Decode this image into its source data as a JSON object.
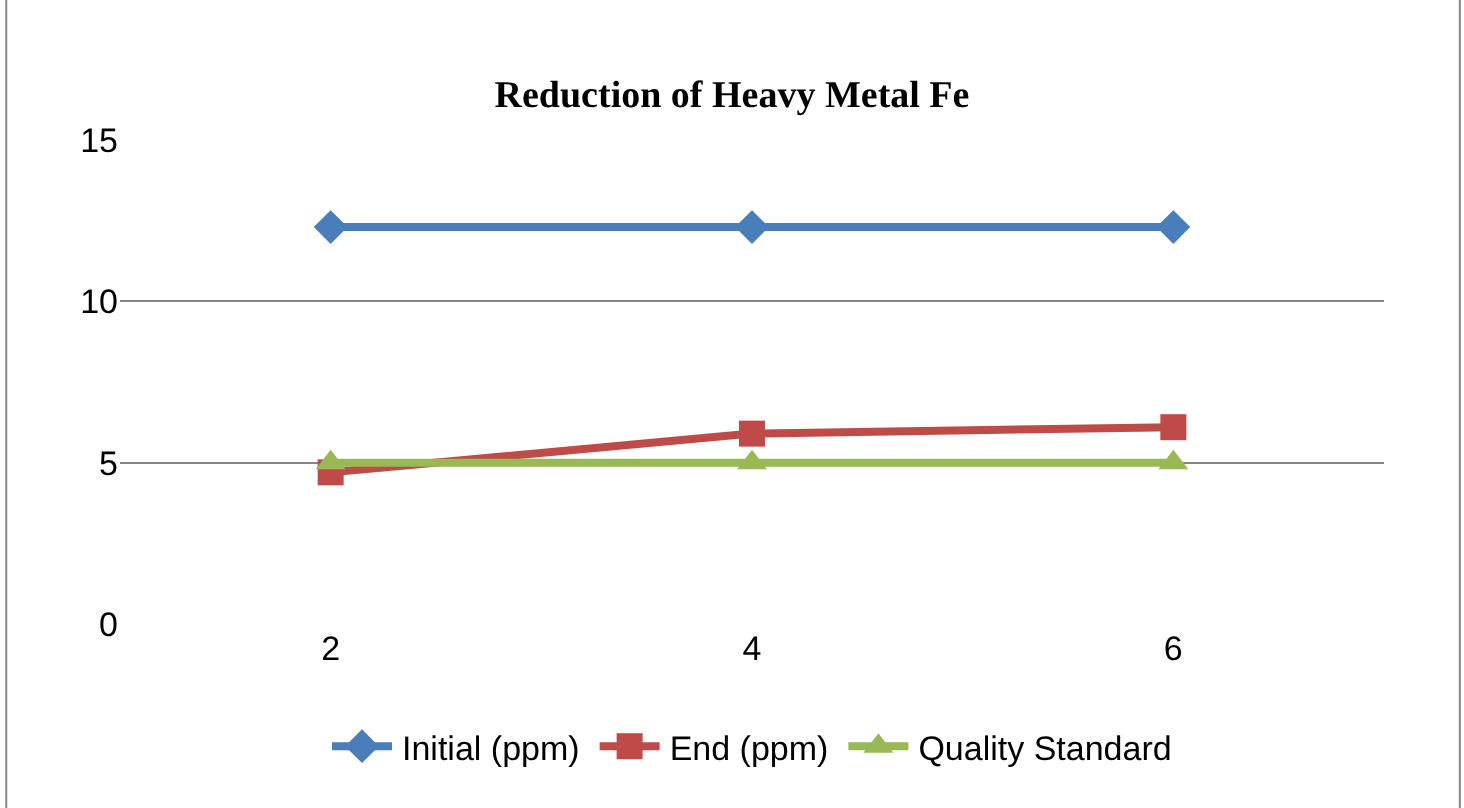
{
  "chart_data": {
    "type": "line",
    "title": "Reduction of Heavy Metal Fe",
    "categories": [
      "2",
      "4",
      "6"
    ],
    "series": [
      {
        "name": "Initial (ppm)",
        "color": "#4a7ebb",
        "marker": "diamond",
        "values": [
          12.3,
          12.3,
          12.3
        ]
      },
      {
        "name": "End (ppm)",
        "color": "#be4b48",
        "marker": "square",
        "values": [
          4.7,
          5.9,
          6.1
        ]
      },
      {
        "name": "Quality Standard",
        "color": "#98b954",
        "marker": "triangle",
        "values": [
          5,
          5,
          5
        ]
      }
    ],
    "ylim": [
      0,
      15
    ],
    "yticks": [
      0,
      5,
      10,
      15
    ],
    "grid": "y",
    "legend": "bottom"
  }
}
